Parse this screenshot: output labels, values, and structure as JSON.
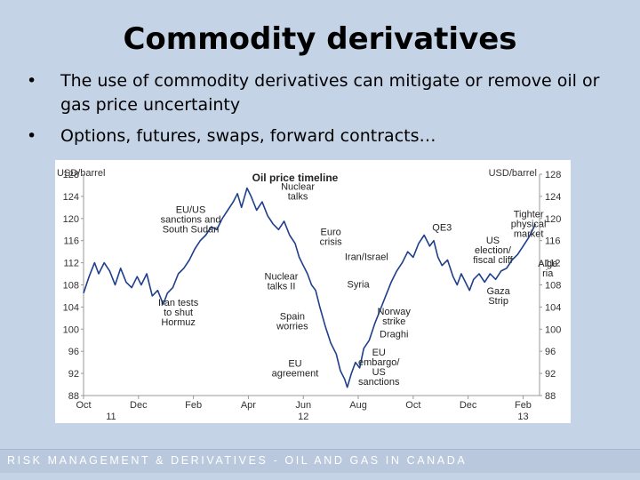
{
  "slide": {
    "title": "Commodity derivatives",
    "bullets": [
      "The use of commodity derivatives can mitigate or remove oil or gas price uncertainty",
      "Options, futures, swaps, forward contracts…"
    ],
    "bullet_marker": "•",
    "footer": "RISK MANAGEMENT & DERIVATIVES - OIL AND GAS IN CANADA"
  },
  "colors": {
    "background": "#c5d3e6",
    "line": "#1f3f8c",
    "footer_band": "#b9c8dc"
  },
  "chart_data": {
    "type": "line",
    "title": "Oil price timeline",
    "ylabel_left": "USD/barrel",
    "ylabel_right": "USD/barrel",
    "ylim": [
      88,
      128
    ],
    "yticks": [
      88,
      92,
      96,
      100,
      104,
      108,
      112,
      116,
      120,
      124,
      128
    ],
    "x_ticks": [
      "Oct",
      "Dec",
      "Feb",
      "Apr",
      "Jun",
      "Aug",
      "Oct",
      "Dec",
      "Feb"
    ],
    "x_years": [
      {
        "label": "11",
        "month_index": 1
      },
      {
        "label": "12",
        "month_index": 8
      },
      {
        "label": "13",
        "month_index": 16
      }
    ],
    "grid": false,
    "x_unit": "months since Oct 2011",
    "series": [
      {
        "name": "",
        "points": [
          [
            0.0,
            106.5
          ],
          [
            0.2,
            109.5
          ],
          [
            0.4,
            112.0
          ],
          [
            0.55,
            110.0
          ],
          [
            0.75,
            112.0
          ],
          [
            0.95,
            110.5
          ],
          [
            1.15,
            108.0
          ],
          [
            1.35,
            111.0
          ],
          [
            1.55,
            108.5
          ],
          [
            1.75,
            107.5
          ],
          [
            1.95,
            109.5
          ],
          [
            2.1,
            108.0
          ],
          [
            2.3,
            110.0
          ],
          [
            2.5,
            106.0
          ],
          [
            2.7,
            107.0
          ],
          [
            2.9,
            104.5
          ],
          [
            3.05,
            106.5
          ],
          [
            3.25,
            107.5
          ],
          [
            3.45,
            110.0
          ],
          [
            3.65,
            111.0
          ],
          [
            3.85,
            112.5
          ],
          [
            4.05,
            114.5
          ],
          [
            4.25,
            116.0
          ],
          [
            4.45,
            117.0
          ],
          [
            4.65,
            118.5
          ],
          [
            4.85,
            118.0
          ],
          [
            5.05,
            120.0
          ],
          [
            5.25,
            121.5
          ],
          [
            5.45,
            123.0
          ],
          [
            5.6,
            124.5
          ],
          [
            5.75,
            122.0
          ],
          [
            5.95,
            125.5
          ],
          [
            6.1,
            124.0
          ],
          [
            6.3,
            121.5
          ],
          [
            6.5,
            123.0
          ],
          [
            6.7,
            120.5
          ],
          [
            6.9,
            119.0
          ],
          [
            7.1,
            118.0
          ],
          [
            7.3,
            119.5
          ],
          [
            7.5,
            117.0
          ],
          [
            7.7,
            115.5
          ],
          [
            7.85,
            113.0
          ],
          [
            8.0,
            111.5
          ],
          [
            8.15,
            110.0
          ],
          [
            8.3,
            108.0
          ],
          [
            8.45,
            107.0
          ],
          [
            8.6,
            104.0
          ],
          [
            8.8,
            100.5
          ],
          [
            9.0,
            97.5
          ],
          [
            9.2,
            95.5
          ],
          [
            9.35,
            92.5
          ],
          [
            9.5,
            91.0
          ],
          [
            9.6,
            89.5
          ],
          [
            9.75,
            92.0
          ],
          [
            9.9,
            94.0
          ],
          [
            10.05,
            93.0
          ],
          [
            10.2,
            96.5
          ],
          [
            10.4,
            98.0
          ],
          [
            10.6,
            101.0
          ],
          [
            10.8,
            103.5
          ],
          [
            11.0,
            106.0
          ],
          [
            11.2,
            108.5
          ],
          [
            11.4,
            110.5
          ],
          [
            11.6,
            112.0
          ],
          [
            11.8,
            114.0
          ],
          [
            12.0,
            113.0
          ],
          [
            12.2,
            115.5
          ],
          [
            12.4,
            117.0
          ],
          [
            12.6,
            115.0
          ],
          [
            12.75,
            116.0
          ],
          [
            12.9,
            113.0
          ],
          [
            13.05,
            111.5
          ],
          [
            13.25,
            112.5
          ],
          [
            13.45,
            109.5
          ],
          [
            13.6,
            108.0
          ],
          [
            13.75,
            110.0
          ],
          [
            13.9,
            108.5
          ],
          [
            14.05,
            107.0
          ],
          [
            14.2,
            109.0
          ],
          [
            14.4,
            110.0
          ],
          [
            14.6,
            108.5
          ],
          [
            14.8,
            110.0
          ],
          [
            15.0,
            109.0
          ],
          [
            15.2,
            110.5
          ],
          [
            15.4,
            111.0
          ],
          [
            15.6,
            112.5
          ],
          [
            15.8,
            113.5
          ],
          [
            16.0,
            115.0
          ],
          [
            16.2,
            116.5
          ],
          [
            16.35,
            118.0
          ],
          [
            16.45,
            119.0
          ]
        ]
      }
    ],
    "annotations": [
      {
        "text": "EU/US\nsanctions and\nSouth Sudan",
        "x": 3.9,
        "y": 121.0
      },
      {
        "text": "Iran tests\nto shut\nHormuz",
        "x": 3.45,
        "y": 104.2
      },
      {
        "text": "Nuclear\ntalks",
        "x": 7.8,
        "y": 125.2
      },
      {
        "text": "Euro\ncrisis",
        "x": 9.0,
        "y": 117.0
      },
      {
        "text": "Nuclear\ntalks II",
        "x": 7.2,
        "y": 109.0
      },
      {
        "text": "Spain\nworries",
        "x": 7.6,
        "y": 101.7
      },
      {
        "text": "EU\nagreement",
        "x": 7.7,
        "y": 93.2
      },
      {
        "text": "Iran/Israel",
        "x": 10.3,
        "y": 112.5
      },
      {
        "text": "Syria",
        "x": 10.0,
        "y": 107.5
      },
      {
        "text": "QE3",
        "x": 13.05,
        "y": 117.8
      },
      {
        "text": "Norway\nstrike",
        "x": 11.3,
        "y": 102.6
      },
      {
        "text": "Draghi",
        "x": 11.3,
        "y": 98.5
      },
      {
        "text": "EU\nembargo/\nUS\nsanctions",
        "x": 10.75,
        "y": 95.2
      },
      {
        "text": "US\nelection/\nfiscal cliff",
        "x": 14.9,
        "y": 115.5
      },
      {
        "text": "Gaza\nStrip",
        "x": 15.1,
        "y": 106.3
      },
      {
        "text": "Tighter\nphysical\nmarket",
        "x": 16.2,
        "y": 120.2
      },
      {
        "text": "Alge\nria",
        "x": 16.9,
        "y": 111.3
      }
    ]
  }
}
